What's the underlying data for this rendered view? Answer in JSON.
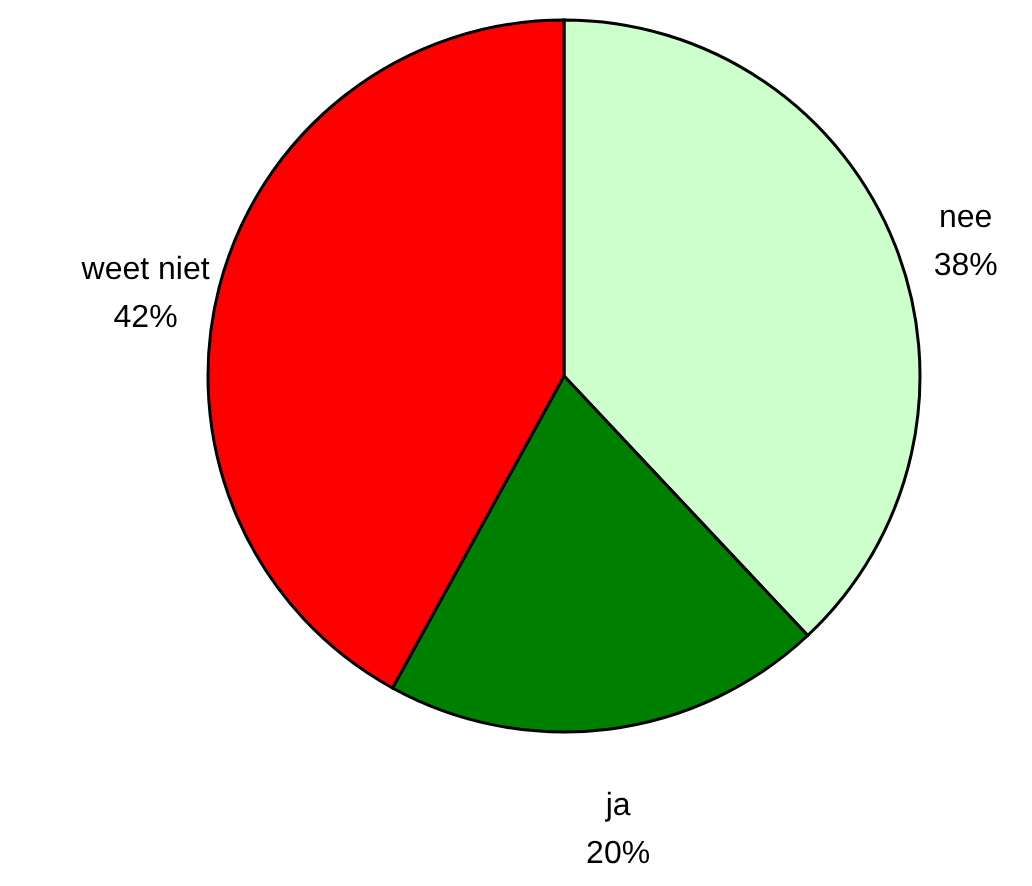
{
  "chart_data": {
    "type": "pie",
    "categories": [
      "nee",
      "ja",
      "weet niet"
    ],
    "values": [
      38,
      20,
      42
    ],
    "value_labels": [
      "38%",
      "20%",
      "42%"
    ],
    "colors": [
      "#ccffcc",
      "#008000",
      "#ff0000"
    ]
  }
}
